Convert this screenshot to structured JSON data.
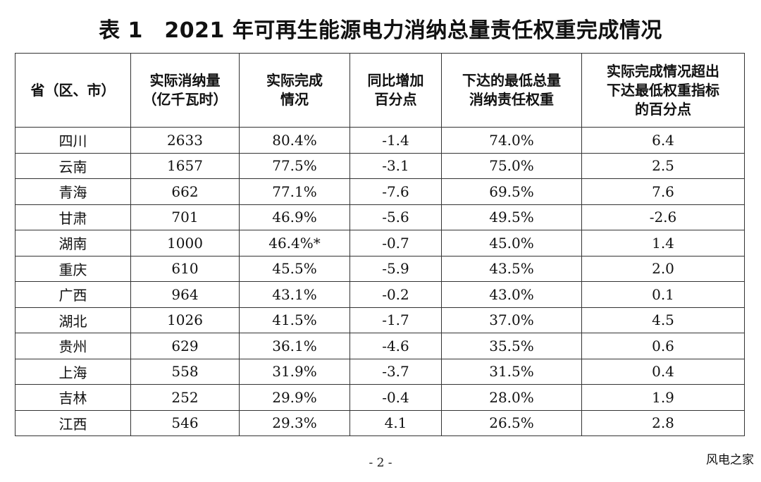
{
  "title": "表 1　2021 年可再生能源电力消纳总量责任权重完成情况",
  "table": {
    "headers": [
      [
        "省（区、市）"
      ],
      [
        "实际消纳量",
        "（亿千瓦时）"
      ],
      [
        "实际完成",
        "情况"
      ],
      [
        "同比增加",
        "百分点"
      ],
      [
        "下达的最低总量",
        "消纳责任权重"
      ],
      [
        "实际完成情况超出",
        "下达最低权重指标",
        "的百分点"
      ]
    ],
    "rows": [
      [
        "四川",
        "2633",
        "80.4%",
        "-1.4",
        "74.0%",
        "6.4"
      ],
      [
        "云南",
        "1657",
        "77.5%",
        "-3.1",
        "75.0%",
        "2.5"
      ],
      [
        "青海",
        "662",
        "77.1%",
        "-7.6",
        "69.5%",
        "7.6"
      ],
      [
        "甘肃",
        "701",
        "46.9%",
        "-5.6",
        "49.5%",
        "-2.6"
      ],
      [
        "湖南",
        "1000",
        "46.4%*",
        "-0.7",
        "45.0%",
        "1.4"
      ],
      [
        "重庆",
        "610",
        "45.5%",
        "-5.9",
        "43.5%",
        "2.0"
      ],
      [
        "广西",
        "964",
        "43.1%",
        "-0.2",
        "43.0%",
        "0.1"
      ],
      [
        "湖北",
        "1026",
        "41.5%",
        "-1.7",
        "37.0%",
        "4.5"
      ],
      [
        "贵州",
        "629",
        "36.1%",
        "-4.6",
        "35.5%",
        "0.6"
      ],
      [
        "上海",
        "558",
        "31.9%",
        "-3.7",
        "31.5%",
        "0.4"
      ],
      [
        "吉林",
        "252",
        "29.9%",
        "-0.4",
        "28.0%",
        "1.9"
      ],
      [
        "江西",
        "546",
        "29.3%",
        "4.1",
        "26.5%",
        "2.8"
      ]
    ]
  },
  "page_number": "- 2 -",
  "watermark": "风电之家"
}
